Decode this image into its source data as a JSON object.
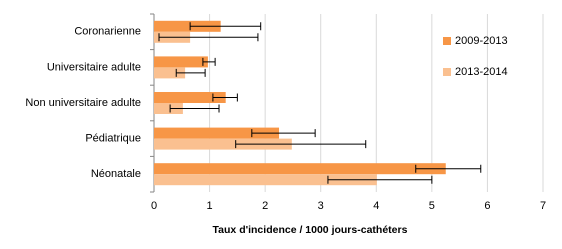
{
  "chart_data": {
    "type": "barh",
    "xlabel": "Taux d'incidence  / 1000 jours-cathéters",
    "categories": [
      "Coronarienne",
      "Universitaire adulte",
      "Non universitaire adulte",
      "Pédiatrique",
      "Néonatale"
    ],
    "series": [
      {
        "name": "2009-2013",
        "color": "#f79646",
        "values": [
          1.2,
          0.97,
          1.29,
          2.25,
          5.25
        ],
        "ci_low": [
          0.65,
          0.88,
          1.06,
          1.76,
          4.71
        ],
        "ci_high": [
          1.92,
          1.1,
          1.5,
          2.9,
          5.88
        ]
      },
      {
        "name": "2013-2014",
        "color": "#fac090",
        "values": [
          0.65,
          0.56,
          0.52,
          2.48,
          4.01
        ],
        "ci_low": [
          0.09,
          0.4,
          0.29,
          1.47,
          3.13
        ],
        "ci_high": [
          1.87,
          0.92,
          1.17,
          3.81,
          5.0
        ]
      }
    ],
    "xlim": [
      0,
      7
    ],
    "xticks": [
      0,
      1,
      2,
      3,
      4,
      5,
      6,
      7
    ],
    "grid": true,
    "legend": "right"
  }
}
